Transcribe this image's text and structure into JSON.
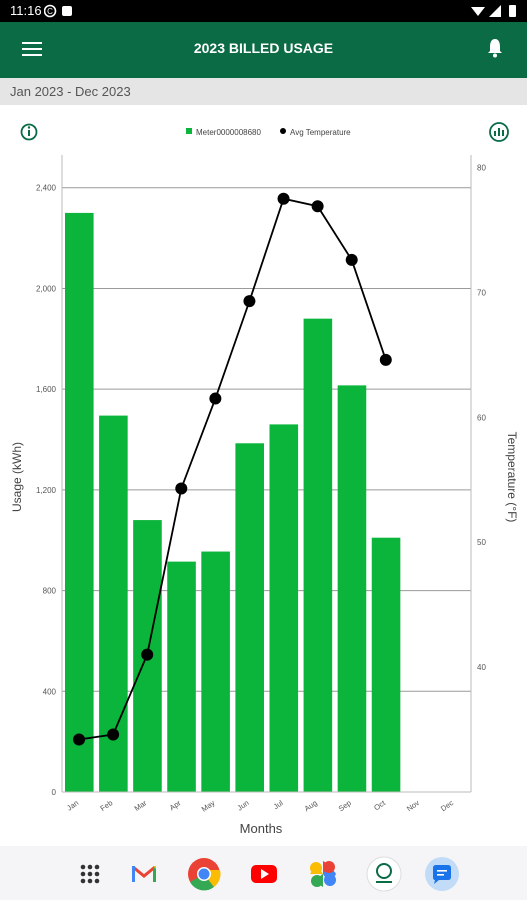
{
  "status_bar": {
    "time": "11:16"
  },
  "app_bar": {
    "title": "2023 BILLED USAGE",
    "menu_icon": "hamburger-menu-icon",
    "bell_icon": "bell-icon"
  },
  "date_range": "Jan 2023 - Dec 2023",
  "chart_data": {
    "type": "bar",
    "xlabel": "Months",
    "ylabel": "Usage (kWh)",
    "y2label": "Temperature (°F)",
    "categories": [
      "Jan",
      "Feb",
      "Mar",
      "Apr",
      "May",
      "Jun",
      "Jul",
      "Aug",
      "Sep",
      "Oct",
      "Nov",
      "Dec"
    ],
    "ylim": [
      0,
      2530
    ],
    "y2lim": [
      30,
      81
    ],
    "yticks": [
      "0",
      "400",
      "800",
      "1,200",
      "1,600",
      "2,000",
      "2,400"
    ],
    "y2ticks": [
      "40",
      "50",
      "60",
      "70",
      "80"
    ],
    "legend_position": "top-center",
    "series": [
      {
        "name": "Meter0000008680",
        "kind": "bar",
        "color": "#0bb43a",
        "values": [
          2300,
          1495,
          1080,
          915,
          955,
          1385,
          1460,
          1880,
          1615,
          1010,
          null,
          null
        ]
      },
      {
        "name": "Avg Temperature",
        "kind": "line",
        "color": "#000000",
        "axis": "right",
        "values": [
          34.2,
          34.6,
          41.0,
          54.3,
          61.5,
          69.3,
          77.5,
          76.9,
          72.6,
          64.6,
          null,
          null
        ]
      }
    ]
  },
  "nav_apps": [
    "apps-grid-icon",
    "gmail-icon",
    "chrome-icon",
    "youtube-icon",
    "photos-icon",
    "utility-app-icon",
    "messages-icon"
  ]
}
